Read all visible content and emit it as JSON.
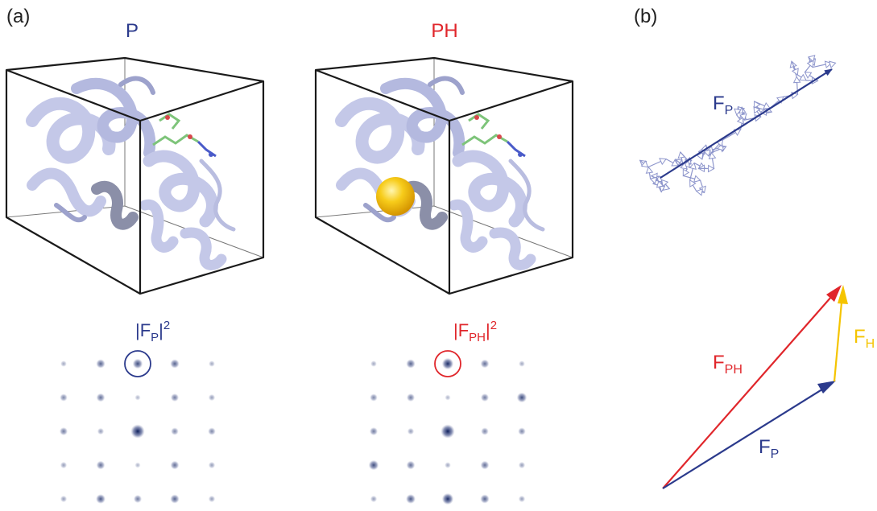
{
  "panels": {
    "a_label": "(a)",
    "b_label": "(b)"
  },
  "structures": {
    "protein": {
      "title": "P"
    },
    "derivative": {
      "title": "PH"
    }
  },
  "patterns": {
    "protein": {
      "label_main": "|F",
      "label_sub": "P",
      "label_end": "|",
      "label_sup": "2"
    },
    "derivative": {
      "label_main": "|F",
      "label_sub": "PH",
      "label_end": "|",
      "label_sup": "2"
    }
  },
  "vectors": {
    "walk": {
      "main": "F",
      "sub": "P"
    },
    "fp": {
      "main": "F",
      "sub": "P"
    },
    "fph": {
      "main": "F",
      "sub": "PH"
    },
    "fh": {
      "main": "F",
      "sub": "H"
    }
  },
  "colors": {
    "protein_blue": "#2b3a8c",
    "derivative_red": "#e0262b",
    "heavy_atom_yellow": "#f5c400",
    "ribbon": "#c4c8e8",
    "walk_arrows": "#8e96cc"
  },
  "spot_intensities": {
    "protein": [
      [
        0.15,
        0.45,
        0.55,
        0.45,
        0.15
      ],
      [
        0.3,
        0.4,
        0.1,
        0.35,
        0.2
      ],
      [
        0.35,
        0.2,
        0.95,
        0.3,
        0.3
      ],
      [
        0.2,
        0.4,
        0.1,
        0.4,
        0.2
      ],
      [
        0.2,
        0.5,
        0.35,
        0.45,
        0.2
      ]
    ],
    "derivative": [
      [
        0.15,
        0.45,
        0.7,
        0.4,
        0.15
      ],
      [
        0.3,
        0.35,
        0.1,
        0.35,
        0.55
      ],
      [
        0.35,
        0.2,
        0.95,
        0.3,
        0.3
      ],
      [
        0.55,
        0.4,
        0.15,
        0.4,
        0.2
      ],
      [
        0.2,
        0.5,
        0.7,
        0.45,
        0.2
      ]
    ]
  }
}
